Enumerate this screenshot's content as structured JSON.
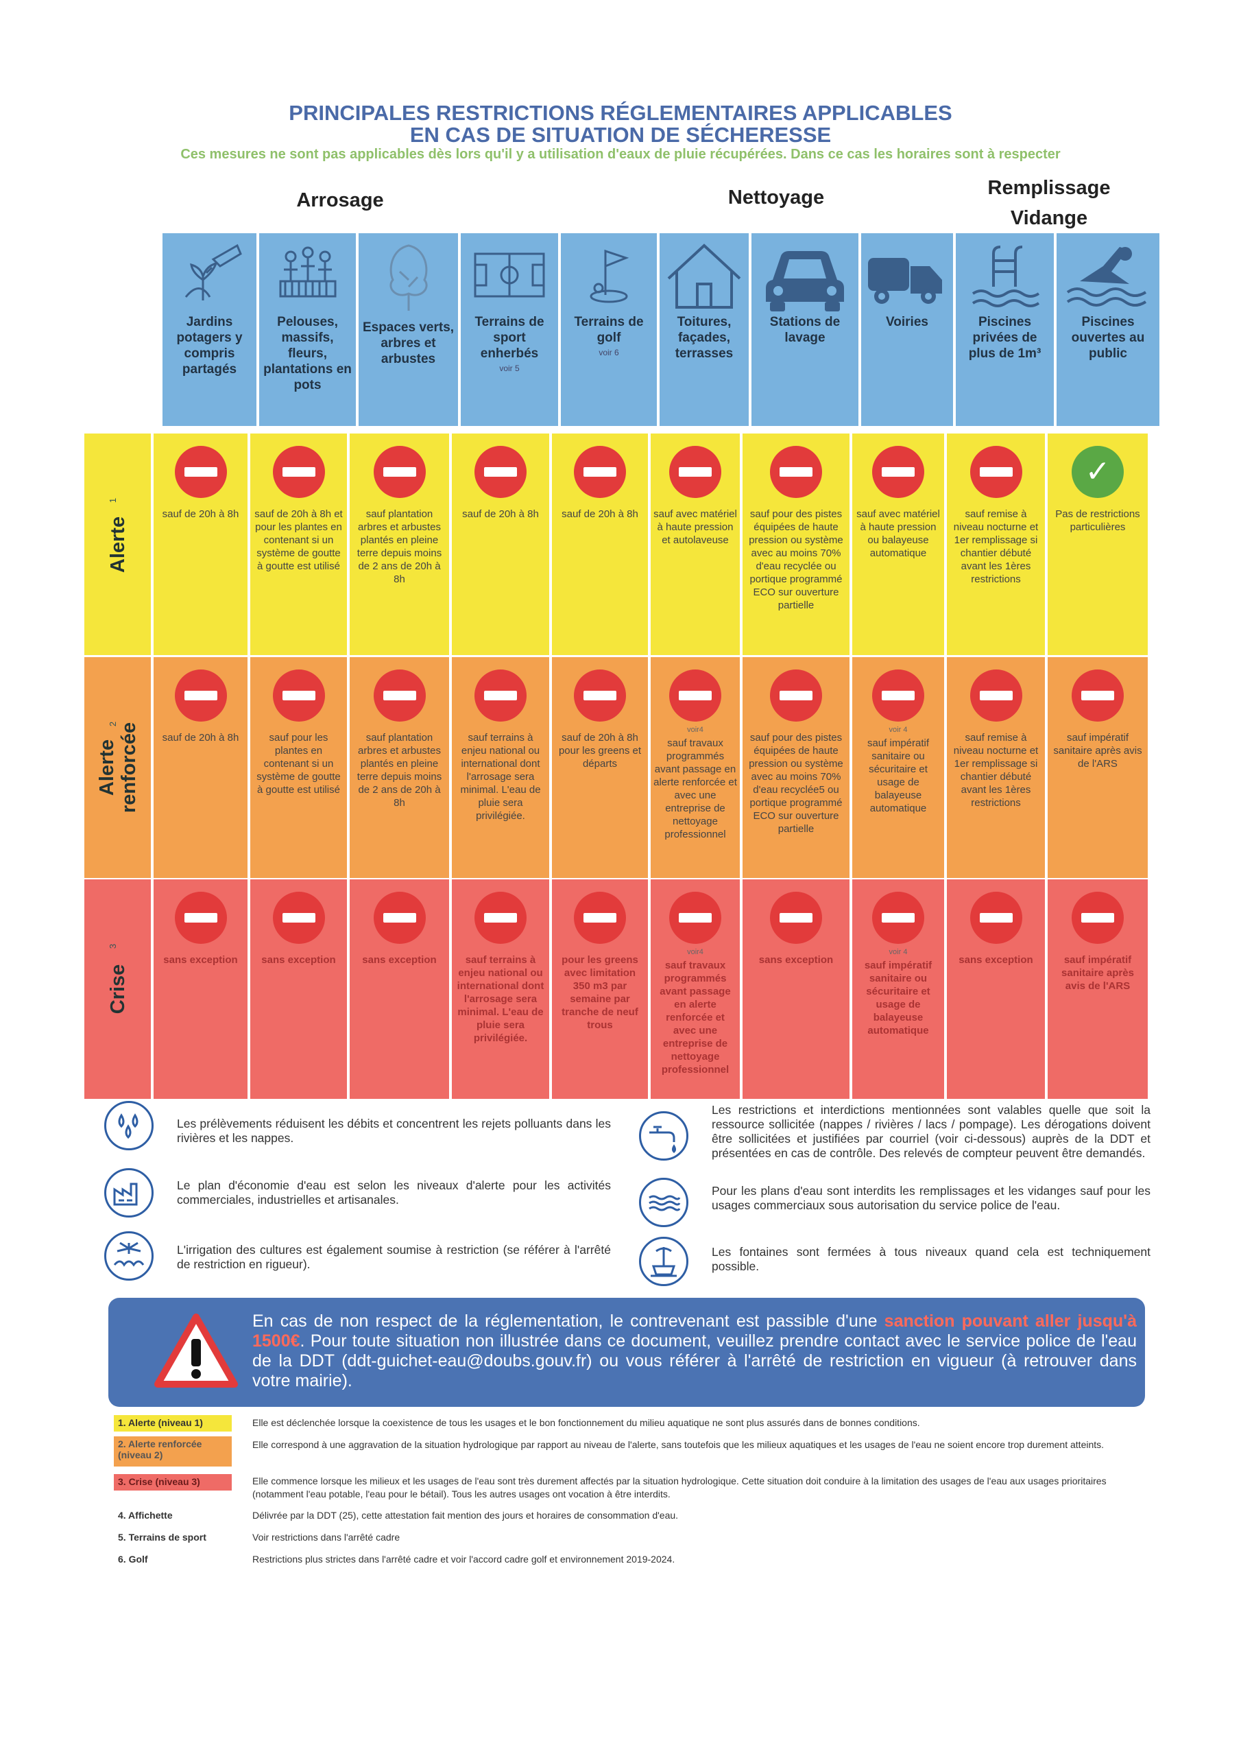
{
  "title_line1": "PRINCIPALES RESTRICTIONS RÉGLEMENTAIRES APPLICABLES",
  "title_line2": "EN CAS DE SITUATION DE SÉCHERESSE",
  "subtitle": "Ces mesures ne sont pas applicables dès lors qu'il y a utilisation d'eaux de pluie récupérées. Dans ce cas les horaires sont à respecter",
  "categories": {
    "arrosage": "Arrosage",
    "nettoyage": "Nettoyage",
    "remplissage": "Remplissage Vidange"
  },
  "columns": [
    {
      "label": "Jardins potagers y compris partagés",
      "note": "",
      "icon": "garden-icon"
    },
    {
      "label": "Pelouses, massifs, fleurs, plantations en pots",
      "note": "",
      "icon": "flowers-icon"
    },
    {
      "label": "Espaces verts, arbres et arbustes",
      "note": "",
      "icon": "tree-icon"
    },
    {
      "label": "Terrains de sport enherbés",
      "note": "voir 5",
      "icon": "sport-field-icon"
    },
    {
      "label": "Terrains de golf",
      "note": "voir 6",
      "icon": "golf-icon"
    },
    {
      "label": "Toitures, façades, terrasses",
      "note": "",
      "icon": "house-icon"
    },
    {
      "label": "Stations de lavage",
      "note": "",
      "icon": "car-icon"
    },
    {
      "label": "Voiries",
      "note": "",
      "icon": "sweeper-truck-icon"
    },
    {
      "label": "Piscines privées de plus de 1m³",
      "note": "",
      "icon": "pool-ladder-icon"
    },
    {
      "label": "Piscines ouvertes au public",
      "note": "",
      "icon": "swimmer-icon"
    }
  ],
  "levels": [
    {
      "name": "Alerte",
      "number": "1",
      "color": "#f5e63b",
      "cells": [
        {
          "sign": "no-entry",
          "note": "",
          "text": "sauf de 20h à 8h"
        },
        {
          "sign": "no-entry",
          "note": "",
          "text": "sauf de 20h à 8h et pour les plantes en contenant si un système de goutte à goutte est utilisé"
        },
        {
          "sign": "no-entry",
          "note": "",
          "text": "sauf plantation arbres et arbustes plantés en pleine terre depuis moins de 2 ans de 20h à 8h"
        },
        {
          "sign": "no-entry",
          "note": "",
          "text": "sauf de 20h à 8h"
        },
        {
          "sign": "no-entry",
          "note": "",
          "text": "sauf de 20h à 8h"
        },
        {
          "sign": "no-entry",
          "note": "",
          "text": "sauf avec matériel à haute pression et autolaveuse"
        },
        {
          "sign": "no-entry",
          "note": "",
          "text": "sauf pour des pistes équipées de haute pression ou système avec au moins 70% d'eau recyclée ou portique programmé ECO sur ouverture partielle"
        },
        {
          "sign": "no-entry",
          "note": "",
          "text": "sauf avec matériel à haute pression ou balayeuse automatique"
        },
        {
          "sign": "no-entry",
          "note": "",
          "text": "sauf remise à niveau nocturne et 1er remplissage si chantier débuté avant les 1ères restrictions"
        },
        {
          "sign": "check",
          "note": "",
          "text": "Pas de restrictions particulières"
        }
      ]
    },
    {
      "name": "Alerte renforcée",
      "number": "2",
      "color": "#f3a14e",
      "cells": [
        {
          "sign": "no-entry",
          "note": "",
          "text": "sauf de 20h à 8h"
        },
        {
          "sign": "no-entry",
          "note": "",
          "text": "sauf pour les plantes en contenant si un système de goutte à goutte est utilisé"
        },
        {
          "sign": "no-entry",
          "note": "",
          "text": "sauf plantation arbres et arbustes plantés en pleine terre depuis moins de 2 ans de 20h à 8h"
        },
        {
          "sign": "no-entry",
          "note": "",
          "text": "sauf terrains à enjeu national ou international dont l'arrosage sera minimal. L'eau de pluie sera privilégiée."
        },
        {
          "sign": "no-entry",
          "note": "",
          "text": "sauf de 20h à 8h pour les greens et départs"
        },
        {
          "sign": "no-entry",
          "note": "voir4",
          "text": "sauf travaux programmés avant passage en alerte renforcée et avec une entreprise de nettoyage professionnel"
        },
        {
          "sign": "no-entry",
          "note": "",
          "text": "sauf pour des pistes équipées de haute pression ou système avec au moins 70% d'eau recyclée5 ou portique programmé ECO sur ouverture partielle"
        },
        {
          "sign": "no-entry",
          "note": "voir 4",
          "text": "sauf impératif sanitaire ou sécuritaire et usage de balayeuse automatique"
        },
        {
          "sign": "no-entry",
          "note": "",
          "text": "sauf remise à niveau nocturne et 1er remplissage si chantier débuté avant les 1ères restrictions"
        },
        {
          "sign": "no-entry",
          "note": "",
          "text": "sauf impératif sanitaire après avis de l'ARS"
        }
      ]
    },
    {
      "name": "Crise",
      "number": "3",
      "color": "#ef6b66",
      "cells": [
        {
          "sign": "no-entry",
          "note": "",
          "text": "sans exception"
        },
        {
          "sign": "no-entry",
          "note": "",
          "text": "sans exception"
        },
        {
          "sign": "no-entry",
          "note": "",
          "text": "sans exception"
        },
        {
          "sign": "no-entry",
          "note": "",
          "text": "sauf terrains à enjeu national ou international dont l'arrosage sera minimal. L'eau de pluie sera privilégiée."
        },
        {
          "sign": "no-entry",
          "note": "",
          "text": "pour les greens avec limitation 350 m3 par semaine par tranche de neuf trous"
        },
        {
          "sign": "no-entry",
          "note": "voir4",
          "text": "sauf travaux programmés avant passage en alerte renforcée et avec une entreprise de nettoyage professionnel"
        },
        {
          "sign": "no-entry",
          "note": "",
          "text": "sans exception"
        },
        {
          "sign": "no-entry",
          "note": "voir 4",
          "text": "sauf impératif sanitaire ou sécuritaire et usage de balayeuse automatique"
        },
        {
          "sign": "no-entry",
          "note": "",
          "text": "sans exception"
        },
        {
          "sign": "no-entry",
          "note": "",
          "text": "sauf impératif sanitaire après avis de l'ARS"
        }
      ]
    }
  ],
  "info": [
    {
      "icon": "water-drops-icon",
      "text": "Les prélèvements réduisent les débits et concentrent les rejets polluants dans les rivières et les nappes."
    },
    {
      "icon": "factory-icon",
      "text": "Le plan d'économie d'eau est selon les niveaux d'alerte pour les activités commerciales, industrielles et artisanales."
    },
    {
      "icon": "irrigation-icon",
      "text": "L'irrigation des cultures est également soumise à restriction (se référer à l'arrêté de restriction en rigueur)."
    },
    {
      "icon": "faucet-icon",
      "text": "Les restrictions et interdictions mentionnées sont valables quelle que soit la ressource sollicitée (nappes / rivières / lacs / pompage). Les dérogations doivent être sollicitées et justifiées par courriel (voir ci-dessous) auprès de la DDT et présentées en cas de contrôle. Des relevés de compteur peuvent être demandés."
    },
    {
      "icon": "waves-icon",
      "text": "Pour les plans d'eau sont interdits les remplissages et les vidanges sauf pour les usages commerciaux sous autorisation du service police de l'eau."
    },
    {
      "icon": "fountain-icon",
      "text": "Les fontaines sont fermées à tous niveaux quand cela est techniquement possible."
    }
  ],
  "banner": {
    "icon": "warning-triangle-icon",
    "text_before": "En cas de non respect de la réglementation, le contrevenant est passible d'une ",
    "highlight": "sanction pouvant aller jusqu'à 1500€",
    "text_after": ". Pour toute situation non illustrée dans ce document, veuillez prendre contact avec le service police de l'eau de la DDT (ddt-guichet-eau@doubs.gouv.fr) ou vous référer à l'arrêté de restriction en vigueur (à retrouver dans votre mairie)."
  },
  "legend": [
    {
      "label": "1. Alerte (niveau 1)",
      "color": "#f5e63b",
      "text": "Elle est déclenchée lorsque la coexistence de tous les usages et le bon fonctionnement du milieu aquatique ne sont plus assurés dans de bonnes conditions."
    },
    {
      "label": "2. Alerte renforcée (niveau 2)",
      "color": "#f3a14e",
      "text": "Elle correspond à une aggravation de la situation hydrologique par rapport au niveau de l'alerte, sans toutefois que les milieux aquatiques et les usages de l'eau ne soient encore trop durement atteints."
    },
    {
      "label": "3. Crise (niveau 3)",
      "color": "#ef6b66",
      "text": "Elle commence lorsque les milieux et les usages de l'eau sont très durement affectés par la situation hydrologique. Cette situation doit conduire à la limitation des usages de l'eau aux usages prioritaires (notamment l'eau potable, l'eau pour le bétail). Tous les autres usages ont vocation à être interdits."
    },
    {
      "label": "4. Affichette",
      "color": "",
      "text": "Délivrée par la DDT (25), cette attestation fait mention des jours et horaires de consommation d'eau."
    },
    {
      "label": "5. Terrains de sport",
      "color": "",
      "text": "Voir restrictions dans l'arrêté cadre"
    },
    {
      "label": "6. Golf",
      "color": "",
      "text": "Restrictions plus strictes dans l'arrêté cadre et voir l'accord cadre golf et environnement 2019-2024."
    }
  ]
}
